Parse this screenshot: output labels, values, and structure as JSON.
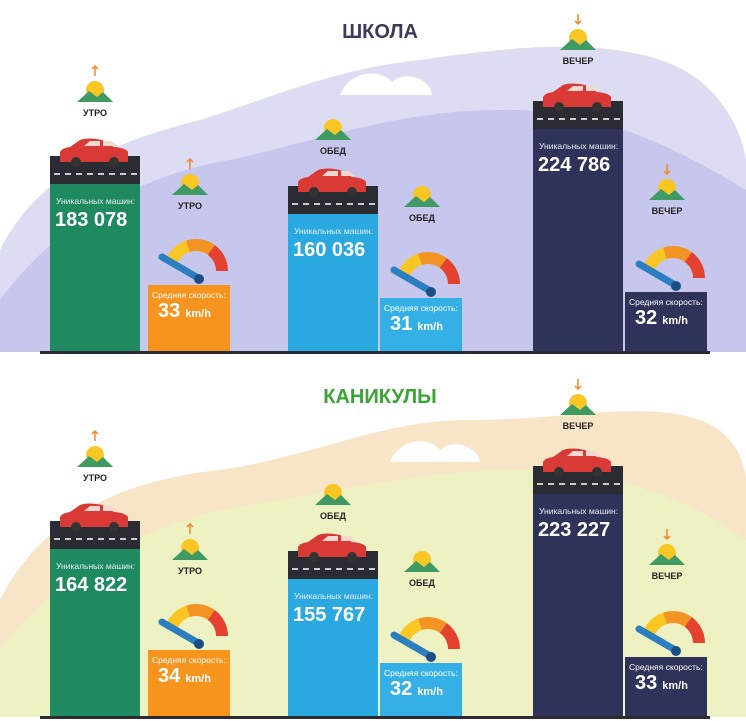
{
  "sections": [
    {
      "title": "ШКОЛА",
      "groups": [
        {
          "period": "УТРО",
          "cars_label": "Уникальных машин:",
          "cars": "183 078",
          "speed_period": "УТРО",
          "speed_label": "Средняя скорость:",
          "speed": "33",
          "unit": "km/h"
        },
        {
          "period": "ОБЕД",
          "cars_label": "Уникальных машин:",
          "cars": "160 036",
          "speed_period": "ОБЕД",
          "speed_label": "Средняя скорость:",
          "speed": "31",
          "unit": "km/h"
        },
        {
          "period": "ВЕЧЕР",
          "cars_label": "Уникальных машин:",
          "cars": "224 786",
          "speed_period": "ВЕЧЕР",
          "speed_label": "Средняя скорость:",
          "speed": "32",
          "unit": "km/h"
        }
      ]
    },
    {
      "title": "КАНИКУЛЫ",
      "groups": [
        {
          "period": "УТРО",
          "cars_label": "Уникальных машин:",
          "cars": "164 822",
          "speed_period": "УТРО",
          "speed_label": "Средняя скорость:",
          "speed": "34",
          "unit": "km/h"
        },
        {
          "period": "ОБЕД",
          "cars_label": "Уникальных машин:",
          "cars": "155 767",
          "speed_period": "ОБЕД",
          "speed_label": "Средняя скорость:",
          "speed": "32",
          "unit": "km/h"
        },
        {
          "period": "ВЕЧЕР",
          "cars_label": "Уникальных машин:",
          "cars": "223 227",
          "speed_period": "ВЕЧЕР",
          "speed_label": "Средняя скорость:",
          "speed": "33",
          "unit": "km/h"
        }
      ]
    }
  ]
}
